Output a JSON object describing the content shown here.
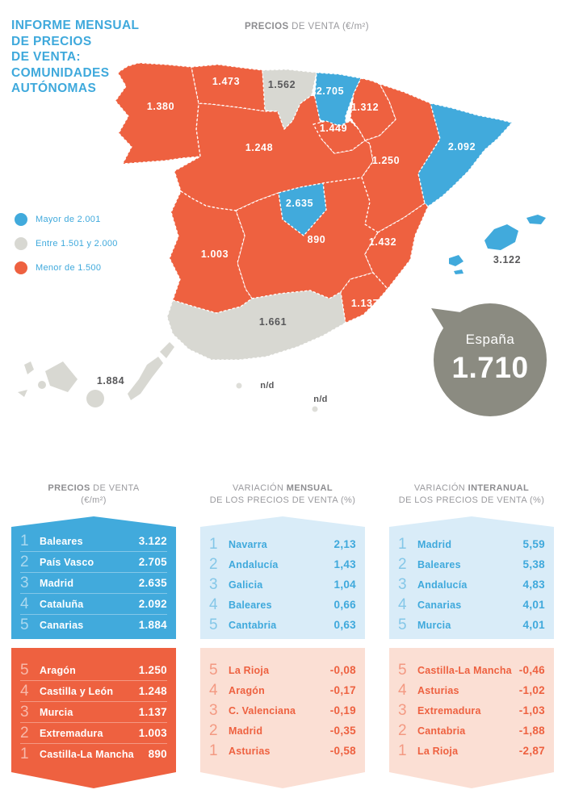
{
  "title": "INFORME MENSUAL\nDE PRECIOS\nDE VENTA:\nCOMUNIDADES\nAUTÓNOMAS",
  "map_header": {
    "bold": "PRECIOS",
    "rest": " DE VENTA (€/m²)"
  },
  "colors": {
    "high": "#41AADC",
    "mid": "#D8D8D2",
    "low": "#EE6140",
    "nd": "#DEDED9",
    "pale_blue": "#D9ECF8",
    "pale_orange": "#FBDFD4",
    "bubble": "#8B8B81",
    "title_blue": "#3FA9DC",
    "header_gray": "#9A9A9E",
    "dark_label": "#58585A"
  },
  "legend": {
    "items": [
      {
        "key": "high",
        "label": "Mayor de 2.001"
      },
      {
        "key": "mid",
        "label": "Entre 1.501 y 2.000"
      },
      {
        "key": "low",
        "label": "Menor de 1.500"
      }
    ]
  },
  "map": {
    "regions": {
      "galicia": {
        "value": "1.380",
        "bucket": "low"
      },
      "asturias": {
        "value": "1.473",
        "bucket": "low"
      },
      "cantabria": {
        "value": "1.562",
        "bucket": "mid"
      },
      "pais_vasco": {
        "value": "2.705",
        "bucket": "high"
      },
      "navarra": {
        "value": "1.312",
        "bucket": "low"
      },
      "la_rioja": {
        "value": "1.449",
        "bucket": "low"
      },
      "aragon": {
        "value": "1.250",
        "bucket": "low"
      },
      "cataluna": {
        "value": "2.092",
        "bucket": "high"
      },
      "castilla_y_leon": {
        "value": "1.248",
        "bucket": "low"
      },
      "madrid": {
        "value": "2.635",
        "bucket": "high"
      },
      "castilla_la_mancha": {
        "value": "890",
        "bucket": "low"
      },
      "c_valenciana": {
        "value": "1.432",
        "bucket": "low"
      },
      "murcia": {
        "value": "1.137",
        "bucket": "low"
      },
      "extremadura": {
        "value": "1.003",
        "bucket": "low"
      },
      "andalucia": {
        "value": "1.661",
        "bucket": "mid"
      },
      "baleares": {
        "value": "3.122",
        "bucket": "high"
      },
      "canarias": {
        "value": "1.884",
        "bucket": "mid"
      },
      "ceuta": {
        "value": "n/d",
        "bucket": "nd"
      },
      "melilla": {
        "value": "n/d",
        "bucket": "nd"
      }
    },
    "spain": {
      "label": "España",
      "value": "1.710"
    }
  },
  "tables": [
    {
      "header": {
        "pre": "",
        "bold": "PRECIOS",
        "post": " DE VENTA",
        "line2": "(€/m²)"
      },
      "top": [
        {
          "rank": "1",
          "name": "Baleares",
          "value": "3.122"
        },
        {
          "rank": "2",
          "name": "País Vasco",
          "value": "2.705"
        },
        {
          "rank": "3",
          "name": "Madrid",
          "value": "2.635"
        },
        {
          "rank": "4",
          "name": "Cataluña",
          "value": "2.092"
        },
        {
          "rank": "5",
          "name": "Canarias",
          "value": "1.884"
        }
      ],
      "bottom": [
        {
          "rank": "5",
          "name": "Aragón",
          "value": "1.250"
        },
        {
          "rank": "4",
          "name": "Castilla y León",
          "value": "1.248"
        },
        {
          "rank": "3",
          "name": "Murcia",
          "value": "1.137"
        },
        {
          "rank": "2",
          "name": "Extremadura",
          "value": "1.003"
        },
        {
          "rank": "1",
          "name": "Castilla-La Mancha",
          "value": "890"
        }
      ]
    },
    {
      "header": {
        "pre": "VARIACIÓN ",
        "bold": "MENSUAL",
        "post": "",
        "line2": "DE LOS PRECIOS DE VENTA (%)"
      },
      "top": [
        {
          "rank": "1",
          "name": "Navarra",
          "value": "2,13"
        },
        {
          "rank": "2",
          "name": "Andalucía",
          "value": "1,43"
        },
        {
          "rank": "3",
          "name": "Galicia",
          "value": "1,04"
        },
        {
          "rank": "4",
          "name": "Baleares",
          "value": "0,66"
        },
        {
          "rank": "5",
          "name": "Cantabria",
          "value": "0,63"
        }
      ],
      "bottom": [
        {
          "rank": "5",
          "name": "La Rioja",
          "value": "-0,08"
        },
        {
          "rank": "4",
          "name": "Aragón",
          "value": "-0,17"
        },
        {
          "rank": "3",
          "name": "C. Valenciana",
          "value": "-0,19"
        },
        {
          "rank": "2",
          "name": "Madrid",
          "value": "-0,35"
        },
        {
          "rank": "1",
          "name": "Asturias",
          "value": "-0,58"
        }
      ]
    },
    {
      "header": {
        "pre": "VARIACIÓN ",
        "bold": "INTERANUAL",
        "post": "",
        "line2": "DE LOS PRECIOS DE VENTA (%)"
      },
      "top": [
        {
          "rank": "1",
          "name": "Madrid",
          "value": "5,59"
        },
        {
          "rank": "2",
          "name": "Baleares",
          "value": "5,38"
        },
        {
          "rank": "3",
          "name": "Andalucía",
          "value": "4,83"
        },
        {
          "rank": "4",
          "name": "Canarias",
          "value": "4,01"
        },
        {
          "rank": "5",
          "name": "Murcia",
          "value": "4,01"
        }
      ],
      "bottom": [
        {
          "rank": "5",
          "name": "Castilla-La Mancha",
          "value": "-0,46"
        },
        {
          "rank": "4",
          "name": "Asturias",
          "value": "-1,02"
        },
        {
          "rank": "3",
          "name": "Extremadura",
          "value": "-1,03"
        },
        {
          "rank": "2",
          "name": "Cantabria",
          "value": "-1,88"
        },
        {
          "rank": "1",
          "name": "La Rioja",
          "value": "-2,87"
        }
      ]
    }
  ],
  "chart_data": [
    {
      "type": "choropleth-map",
      "title": "PRECIOS DE VENTA (€/m²)",
      "legend": [
        "Mayor de 2.001",
        "Entre 1.501 y 2.000",
        "Menor de 1.500"
      ],
      "national_total": {
        "name": "España",
        "value": 1710
      },
      "regions": [
        {
          "name": "Galicia",
          "value": 1380
        },
        {
          "name": "Asturias",
          "value": 1473
        },
        {
          "name": "Cantabria",
          "value": 1562
        },
        {
          "name": "País Vasco",
          "value": 2705
        },
        {
          "name": "Navarra",
          "value": 1312
        },
        {
          "name": "La Rioja",
          "value": 1449
        },
        {
          "name": "Aragón",
          "value": 1250
        },
        {
          "name": "Cataluña",
          "value": 2092
        },
        {
          "name": "Castilla y León",
          "value": 1248
        },
        {
          "name": "Madrid",
          "value": 2635
        },
        {
          "name": "Castilla-La Mancha",
          "value": 890
        },
        {
          "name": "C. Valenciana",
          "value": 1432
        },
        {
          "name": "Murcia",
          "value": 1137
        },
        {
          "name": "Extremadura",
          "value": 1003
        },
        {
          "name": "Andalucía",
          "value": 1661
        },
        {
          "name": "Baleares",
          "value": 3122
        },
        {
          "name": "Canarias",
          "value": 1884
        },
        {
          "name": "Ceuta",
          "value": null
        },
        {
          "name": "Melilla",
          "value": null
        }
      ]
    },
    {
      "type": "table",
      "title": "VARIACIÓN MENSUAL DE LOS PRECIOS DE VENTA (%)",
      "top5": [
        [
          "Navarra",
          2.13
        ],
        [
          "Andalucía",
          1.43
        ],
        [
          "Galicia",
          1.04
        ],
        [
          "Baleares",
          0.66
        ],
        [
          "Cantabria",
          0.63
        ]
      ],
      "bottom5": [
        [
          "La Rioja",
          -0.08
        ],
        [
          "Aragón",
          -0.17
        ],
        [
          "C. Valenciana",
          -0.19
        ],
        [
          "Madrid",
          -0.35
        ],
        [
          "Asturias",
          -0.58
        ]
      ]
    },
    {
      "type": "table",
      "title": "VARIACIÓN INTERANUAL DE LOS PRECIOS DE VENTA (%)",
      "top5": [
        [
          "Madrid",
          5.59
        ],
        [
          "Baleares",
          5.38
        ],
        [
          "Andalucía",
          4.83
        ],
        [
          "Canarias",
          4.01
        ],
        [
          "Murcia",
          4.01
        ]
      ],
      "bottom5": [
        [
          "Castilla-La Mancha",
          -0.46
        ],
        [
          "Asturias",
          -1.02
        ],
        [
          "Extremadura",
          -1.03
        ],
        [
          "Cantabria",
          -1.88
        ],
        [
          "La Rioja",
          -2.87
        ]
      ]
    }
  ]
}
